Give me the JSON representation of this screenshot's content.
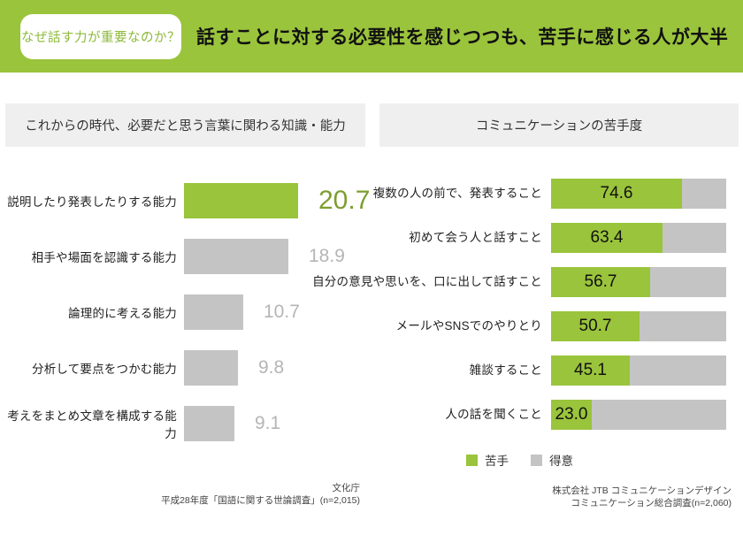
{
  "header": {
    "badge": "なぜ話す力が重要なのか？",
    "title": "話すことに対する必要性を感じつつも、苦手に感じる人が大半"
  },
  "colors": {
    "green": "#9ac43c",
    "green_value_text": "#7d9e2f",
    "gray_bar": "#c4c4c4",
    "gray_value_text": "#b5b5b5",
    "section_bg": "#efefef"
  },
  "left_panel": {
    "section_title": "これからの時代、必要だと思う言葉に関わる知識・能力",
    "source_lines": [
      "文化庁",
      "平成28年度「国語に関する世論調査」(n=2,015)"
    ]
  },
  "right_panel": {
    "section_title": "コミュニケーションの苦手度",
    "legend": [
      {
        "label": "苦手",
        "color": "#9ac43c"
      },
      {
        "label": "得意",
        "color": "#c4c4c4"
      }
    ],
    "source_lines": [
      "株式会社 JTB コミュニケーションデザイン",
      "コミュニケーション総合調査(n=2,060)"
    ]
  },
  "chart_data": [
    {
      "type": "bar",
      "orientation": "horizontal",
      "title": "これからの時代、必要だと思う言葉に関わる知識・能力",
      "categories": [
        "説明したり発表したりする能力",
        "相手や場面を認識する能力",
        "論理的に考える能力",
        "分析して要点をつかむ能力",
        "考えをまとめ文章を構成する能力"
      ],
      "values": [
        20.7,
        18.9,
        10.7,
        9.8,
        9.1
      ],
      "highlight_index": 0,
      "xlim": [
        0,
        25
      ],
      "grid": false,
      "value_labels": "outside-right"
    },
    {
      "type": "bar",
      "orientation": "horizontal-stacked",
      "title": "コミュニケーションの苦手度",
      "categories": [
        "複数の人の前で、発表すること",
        "初めて会う人と話すこと",
        "自分の意見や思いを、口に出して話すこと",
        "メールやSNSでのやりとり",
        "雑談すること",
        "人の話を聞くこと"
      ],
      "series": [
        {
          "name": "苦手",
          "values": [
            74.6,
            63.4,
            56.7,
            50.7,
            45.1,
            23.0
          ]
        },
        {
          "name": "得意",
          "note": "remainder of 100%",
          "values": [
            25.4,
            36.6,
            43.3,
            49.3,
            54.9,
            77.0
          ]
        }
      ],
      "xlim": [
        0,
        100
      ],
      "grid": false,
      "legend_position": "bottom",
      "value_labels": "inside-first-segment"
    }
  ]
}
